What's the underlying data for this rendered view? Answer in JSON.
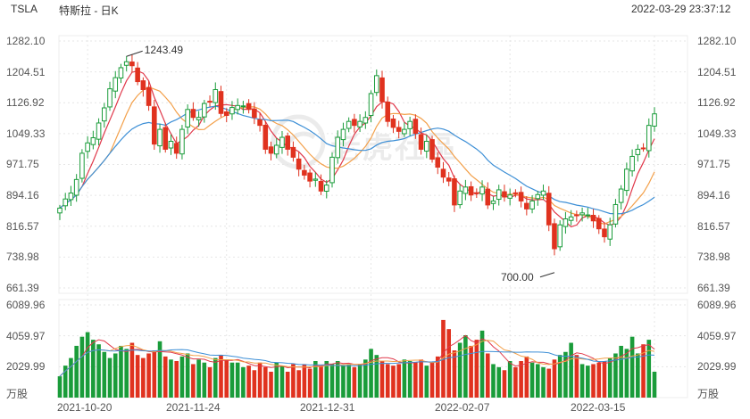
{
  "header": {
    "symbol": "TSLA",
    "title": "特斯拉 - 日K",
    "datetime": "2022-03-29 23:37:12"
  },
  "watermark": {
    "text": "老虎社區"
  },
  "price_axis": {
    "ticks": [
      "1282.10",
      "1204.51",
      "1126.92",
      "1049.33",
      "971.75",
      "894.16",
      "816.57",
      "738.98",
      "661.39"
    ]
  },
  "volume_axis": {
    "ticks": [
      "6089.96",
      "4059.97",
      "2029.99"
    ],
    "unit": "万股"
  },
  "date_axis": {
    "labels": [
      "2021-10-20",
      "2021-11-24",
      "2021-12-31",
      "2022-02-07",
      "2022-03-15"
    ]
  },
  "colors": {
    "up": "#1a9c3a",
    "down": "#e0321f",
    "ma1": "#e0384a",
    "ma2": "#f3a04a",
    "ma3": "#3d8fd6",
    "grid": "#e6e6e6"
  },
  "chart_data": {
    "type": "candlestick",
    "title": "特斯拉 - 日K",
    "ylim": [
      661.39,
      1282.1
    ],
    "volume_ylim": [
      0,
      6089.96
    ],
    "annotations": [
      {
        "text": "1243.49",
        "value": 1243.49
      },
      {
        "text": "700.00",
        "value": 700.0
      }
    ],
    "close": [
      862,
      885,
      900,
      934,
      1000,
      1026,
      1039,
      1076,
      1114,
      1162,
      1190,
      1215,
      1230,
      1220,
      1180,
      1160,
      1120,
      1023,
      1060,
      1010,
      1030,
      1000,
      1060,
      1110,
      1090,
      1090,
      1125,
      1130,
      1160,
      1100,
      1095,
      1115,
      1120,
      1119,
      1110,
      1090,
      1070,
      1010,
      1000,
      1020,
      1040,
      1010,
      990,
      960,
      945,
      930,
      935,
      905,
      920,
      990,
      1040,
      1060,
      1080,
      1070,
      1080,
      1090,
      1150,
      1195,
      1130,
      1080,
      1065,
      1055,
      1060,
      1080,
      1050,
      1010,
      1030,
      985,
      965,
      940,
      930,
      870,
      905,
      915,
      895,
      900,
      915,
      870,
      880,
      908,
      890,
      895,
      900,
      880,
      860,
      880,
      896,
      905,
      820,
      760,
      820,
      835,
      840,
      843,
      850,
      845,
      830,
      810,
      790,
      820,
      871,
      910,
      960,
      992,
      1010,
      1012,
      1070,
      1099
    ],
    "volume": [
      1400,
      2100,
      2600,
      3400,
      4000,
      4300,
      3800,
      3500,
      3000,
      2600,
      2900,
      3400,
      3200,
      3600,
      2800,
      2600,
      2900,
      3100,
      3700,
      2700,
      2500,
      2400,
      2700,
      2900,
      2200,
      2500,
      2300,
      2000,
      2600,
      2800,
      2500,
      2300,
      2300,
      2000,
      2100,
      1800,
      2300,
      2000,
      1700,
      2300,
      2100,
      1700,
      2200,
      1800,
      2200,
      1900,
      2400,
      2100,
      2400,
      2200,
      2400,
      2100,
      2200,
      2000,
      2200,
      2500,
      3200,
      2800,
      2400,
      2200,
      2100,
      2200,
      2500,
      2400,
      2300,
      2500,
      2100,
      2300,
      2700,
      5100,
      4500,
      3100,
      3600,
      4100,
      3400,
      3800,
      4400,
      2900,
      2200,
      2000,
      1800,
      2400,
      2000,
      2400,
      2700,
      2300,
      2200,
      2000,
      1900,
      2500,
      2800,
      3000,
      3600,
      2800,
      2200,
      2100,
      2200,
      2300,
      2400,
      2600,
      2900,
      3400,
      3200,
      4000,
      2900,
      3500,
      3800,
      1700
    ]
  }
}
